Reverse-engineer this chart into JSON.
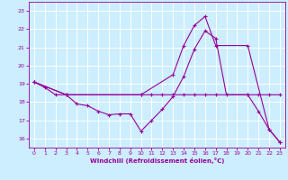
{
  "background_color": "#cceeff",
  "grid_color": "#ffffff",
  "line_color": "#990099",
  "xlabel": "Windchill (Refroidissement éolien,°C)",
  "xlim": [
    -0.5,
    23.5
  ],
  "ylim": [
    15.5,
    23.5
  ],
  "yticks": [
    16,
    17,
    18,
    19,
    20,
    21,
    22,
    23
  ],
  "xticks": [
    0,
    1,
    2,
    3,
    4,
    5,
    6,
    7,
    8,
    9,
    10,
    11,
    12,
    13,
    14,
    15,
    16,
    17,
    18,
    19,
    20,
    21,
    22,
    23
  ],
  "line1_x": [
    0,
    1,
    2,
    3,
    4,
    5,
    6,
    7,
    8,
    9,
    10,
    11,
    12,
    13,
    14,
    15,
    16,
    17,
    18,
    20,
    21,
    22,
    23
  ],
  "line1_y": [
    19.1,
    18.8,
    18.4,
    18.4,
    17.9,
    17.8,
    17.5,
    17.3,
    17.35,
    17.35,
    16.4,
    17.0,
    17.6,
    18.3,
    19.4,
    20.9,
    21.9,
    21.5,
    18.4,
    18.4,
    17.5,
    16.5,
    15.8
  ],
  "line2_x": [
    0,
    3,
    10,
    11,
    12,
    13,
    14,
    15,
    16,
    17,
    20,
    21,
    22,
    23
  ],
  "line2_y": [
    19.1,
    18.4,
    18.4,
    18.4,
    18.4,
    18.4,
    18.4,
    18.4,
    18.4,
    18.4,
    18.4,
    18.4,
    18.4,
    18.4
  ],
  "line3_x": [
    0,
    3,
    10,
    13,
    14,
    15,
    16,
    17,
    20,
    22,
    23
  ],
  "line3_y": [
    19.1,
    18.4,
    18.4,
    19.5,
    21.1,
    22.2,
    22.7,
    21.1,
    21.1,
    16.5,
    15.8
  ]
}
